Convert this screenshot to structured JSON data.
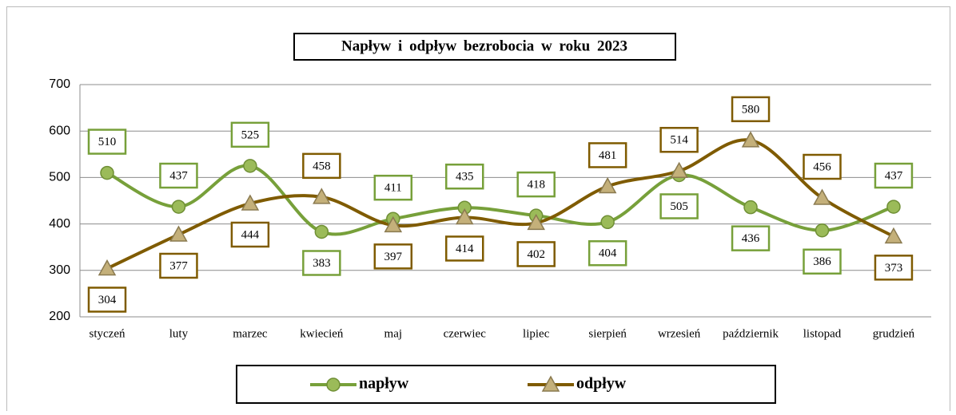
{
  "chart_data": {
    "type": "line",
    "title": "Napływ i odpływ bezrobocia w roku 2023",
    "categories": [
      "styczeń",
      "luty",
      "marzec",
      "kwiecień",
      "maj",
      "czerwiec",
      "lipiec",
      "sierpień",
      "wrzesień",
      "październik",
      "listopad",
      "grudzień"
    ],
    "series": [
      {
        "name": "napływ",
        "color": "#77a03a",
        "values": [
          510,
          437,
          525,
          383,
          411,
          435,
          418,
          404,
          505,
          436,
          386,
          437
        ]
      },
      {
        "name": "odpływ",
        "color": "#7f5b00",
        "values": [
          304,
          377,
          444,
          458,
          397,
          414,
          402,
          481,
          514,
          580,
          456,
          373
        ]
      }
    ],
    "ylim": [
      200,
      700
    ],
    "yticks": [
      200,
      300,
      400,
      500,
      600,
      700
    ],
    "grid": true,
    "legend": "bottom"
  }
}
